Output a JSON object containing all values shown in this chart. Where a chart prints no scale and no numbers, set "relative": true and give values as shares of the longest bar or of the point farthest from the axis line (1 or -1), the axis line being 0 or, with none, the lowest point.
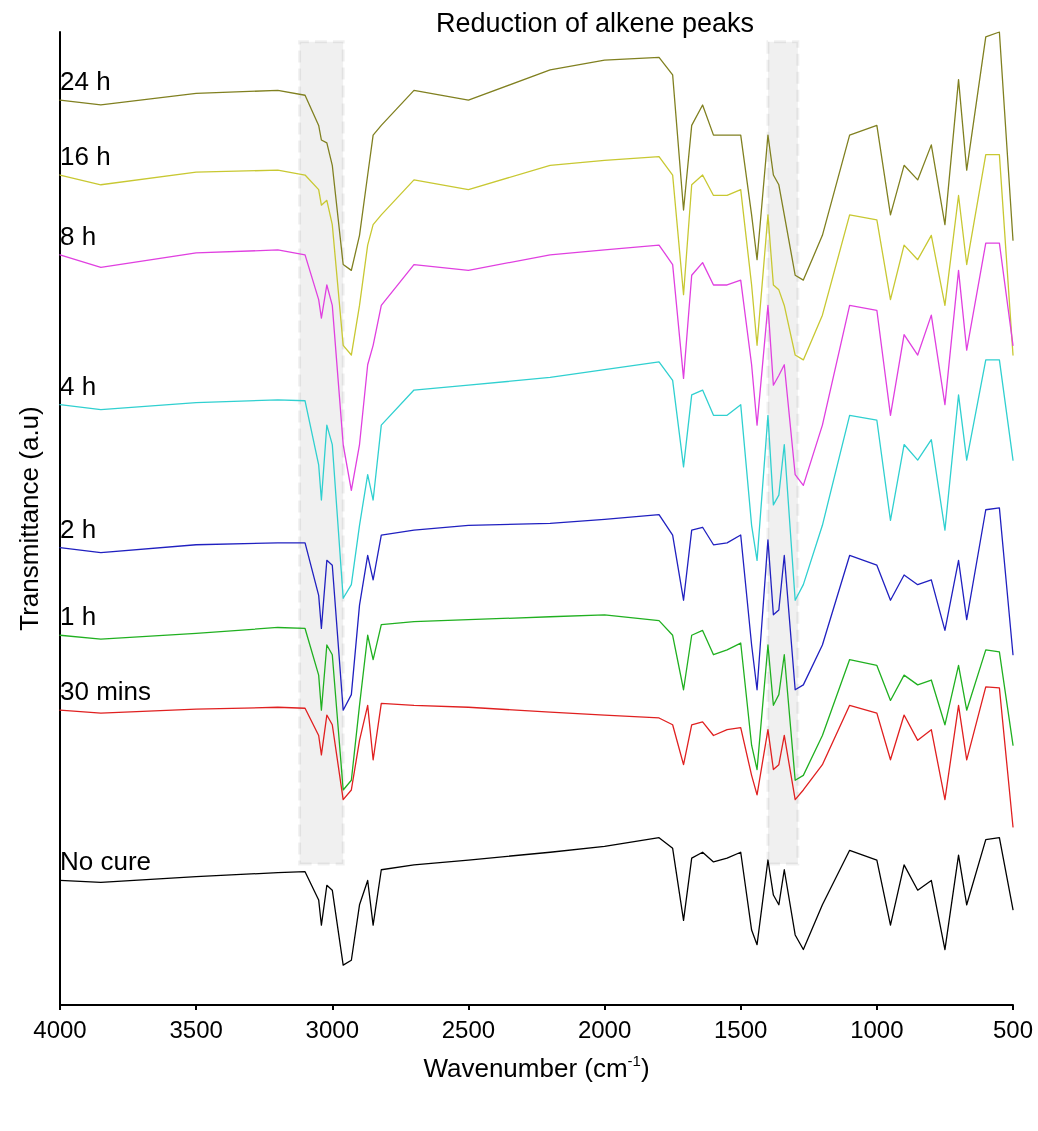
{
  "chart_data": {
    "type": "line",
    "relative": true,
    "title": "Reduction of alkene peaks",
    "xlabel": "Wavenumber (cm$^{-1}$)",
    "ylabel": "Transmittance (a.u)",
    "x": [
      4000,
      3850,
      3500,
      3200,
      3100,
      3050,
      3040,
      3020,
      3000,
      2960,
      2930,
      2900,
      2870,
      2850,
      2820,
      2700,
      2500,
      2200,
      2000,
      1800,
      1750,
      1710,
      1680,
      1640,
      1600,
      1550,
      1500,
      1460,
      1440,
      1400,
      1380,
      1360,
      1340,
      1300,
      1270,
      1200,
      1100,
      1000,
      950,
      900,
      850,
      800,
      750,
      700,
      670,
      600,
      550,
      500
    ],
    "xlim": [
      4000,
      500
    ],
    "xticks": [
      4000,
      3500,
      3000,
      2500,
      2000,
      1500,
      1000,
      500
    ],
    "grid": false,
    "legend": false,
    "marker": "none",
    "line_style": "solid",
    "bands": [
      {
        "axis": "x",
        "from": 3120,
        "to": 2960,
        "color": "#000000"
      },
      {
        "axis": "x",
        "from": 1400,
        "to": 1290,
        "color": "#000000"
      }
    ],
    "series": [
      {
        "name": "24 h",
        "color": "#808020",
        "values": [
          0.93,
          0.925,
          0.937,
          0.94,
          0.935,
          0.904,
          0.889,
          0.886,
          0.863,
          0.761,
          0.755,
          0.791,
          0.853,
          0.894,
          0.904,
          0.94,
          0.93,
          0.961,
          0.971,
          0.974,
          0.956,
          0.817,
          0.904,
          0.925,
          0.894,
          0.894,
          0.894,
          0.812,
          0.766,
          0.894,
          0.853,
          0.843,
          0.812,
          0.75,
          0.745,
          0.791,
          0.894,
          0.904,
          0.812,
          0.863,
          0.848,
          0.884,
          0.802,
          0.951,
          0.858,
          0.995,
          1,
          0.786
        ]
      },
      {
        "name": "16 h",
        "color": "#c8c832",
        "values": [
          0.853,
          0.843,
          0.856,
          0.858,
          0.853,
          0.838,
          0.822,
          0.827,
          0.802,
          0.678,
          0.668,
          0.719,
          0.781,
          0.802,
          0.812,
          0.848,
          0.838,
          0.863,
          0.868,
          0.872,
          0.853,
          0.73,
          0.843,
          0.853,
          0.832,
          0.832,
          0.838,
          0.74,
          0.678,
          0.812,
          0.74,
          0.735,
          0.719,
          0.668,
          0.663,
          0.709,
          0.812,
          0.807,
          0.725,
          0.781,
          0.766,
          0.791,
          0.719,
          0.832,
          0.761,
          0.874,
          0.874,
          0.668
        ]
      },
      {
        "name": "8 h",
        "color": "#e040e0",
        "values": [
          0.771,
          0.758,
          0.773,
          0.776,
          0.771,
          0.725,
          0.706,
          0.74,
          0.719,
          0.576,
          0.529,
          0.576,
          0.658,
          0.678,
          0.719,
          0.761,
          0.755,
          0.771,
          0.776,
          0.781,
          0.761,
          0.644,
          0.75,
          0.763,
          0.74,
          0.74,
          0.745,
          0.658,
          0.596,
          0.719,
          0.637,
          0.647,
          0.658,
          0.545,
          0.534,
          0.596,
          0.719,
          0.714,
          0.606,
          0.689,
          0.668,
          0.709,
          0.617,
          0.755,
          0.673,
          0.783,
          0.783,
          0.678
        ]
      },
      {
        "name": "4 h",
        "color": "#30d0d0",
        "values": [
          0.617,
          0.612,
          0.619,
          0.622,
          0.621,
          0.555,
          0.519,
          0.596,
          0.576,
          0.418,
          0.432,
          0.493,
          0.545,
          0.519,
          0.596,
          0.632,
          0.637,
          0.645,
          0.653,
          0.661,
          0.642,
          0.553,
          0.627,
          0.632,
          0.606,
          0.606,
          0.617,
          0.493,
          0.457,
          0.606,
          0.514,
          0.524,
          0.576,
          0.416,
          0.432,
          0.493,
          0.606,
          0.601,
          0.498,
          0.576,
          0.56,
          0.581,
          0.488,
          0.627,
          0.56,
          0.663,
          0.663,
          0.56
        ]
      },
      {
        "name": "2 h",
        "color": "#2020c0",
        "values": [
          0.47,
          0.465,
          0.473,
          0.475,
          0.475,
          0.421,
          0.387,
          0.457,
          0.452,
          0.303,
          0.319,
          0.411,
          0.462,
          0.437,
          0.483,
          0.488,
          0.493,
          0.495,
          0.499,
          0.504,
          0.483,
          0.416,
          0.488,
          0.491,
          0.473,
          0.475,
          0.483,
          0.37,
          0.324,
          0.478,
          0.401,
          0.406,
          0.462,
          0.324,
          0.329,
          0.37,
          0.462,
          0.452,
          0.416,
          0.442,
          0.432,
          0.437,
          0.385,
          0.457,
          0.396,
          0.509,
          0.511,
          0.36
        ]
      },
      {
        "name": "1 h",
        "color": "#20b020",
        "values": [
          0.38,
          0.376,
          0.382,
          0.388,
          0.387,
          0.339,
          0.303,
          0.37,
          0.36,
          0.221,
          0.231,
          0.308,
          0.38,
          0.355,
          0.391,
          0.394,
          0.396,
          0.399,
          0.401,
          0.395,
          0.38,
          0.324,
          0.38,
          0.385,
          0.36,
          0.365,
          0.372,
          0.267,
          0.242,
          0.37,
          0.308,
          0.319,
          0.36,
          0.231,
          0.236,
          0.277,
          0.355,
          0.349,
          0.313,
          0.339,
          0.329,
          0.334,
          0.288,
          0.349,
          0.303,
          0.365,
          0.363,
          0.267
        ]
      },
      {
        "name": "30 mins",
        "color": "#e02020",
        "values": [
          0.303,
          0.3,
          0.304,
          0.306,
          0.305,
          0.277,
          0.257,
          0.298,
          0.288,
          0.211,
          0.221,
          0.272,
          0.308,
          0.252,
          0.31,
          0.308,
          0.306,
          0.301,
          0.298,
          0.295,
          0.288,
          0.247,
          0.288,
          0.291,
          0.277,
          0.283,
          0.285,
          0.236,
          0.216,
          0.283,
          0.242,
          0.247,
          0.277,
          0.211,
          0.221,
          0.247,
          0.308,
          0.3,
          0.252,
          0.298,
          0.272,
          0.283,
          0.211,
          0.308,
          0.252,
          0.327,
          0.326,
          0.183
        ]
      },
      {
        "name": "No cure",
        "color": "#000000",
        "values": [
          0.128,
          0.126,
          0.132,
          0.136,
          0.137,
          0.108,
          0.082,
          0.123,
          0.118,
          0.041,
          0.046,
          0.103,
          0.128,
          0.082,
          0.139,
          0.144,
          0.149,
          0.157,
          0.163,
          0.172,
          0.161,
          0.087,
          0.151,
          0.157,
          0.147,
          0.151,
          0.157,
          0.077,
          0.062,
          0.149,
          0.113,
          0.103,
          0.139,
          0.072,
          0.057,
          0.103,
          0.159,
          0.149,
          0.082,
          0.144,
          0.118,
          0.128,
          0.057,
          0.154,
          0.103,
          0.17,
          0.172,
          0.098
        ]
      }
    ]
  }
}
